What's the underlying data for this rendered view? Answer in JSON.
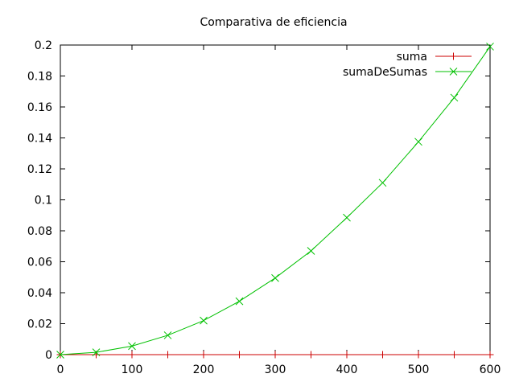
{
  "chart_data": {
    "type": "line",
    "title": "Comparativa de eficiencia",
    "xlabel": "",
    "ylabel": "",
    "xlim": [
      0,
      600
    ],
    "ylim": [
      0,
      0.2
    ],
    "x_ticks": [
      0,
      100,
      200,
      300,
      400,
      500,
      600
    ],
    "y_ticks": [
      0,
      0.02,
      0.04,
      0.06,
      0.08,
      0.1,
      0.12,
      0.14,
      0.16,
      0.18,
      0.2
    ],
    "x_tick_labels": [
      "0",
      "100",
      "200",
      "300",
      "400",
      "500",
      "600"
    ],
    "y_tick_labels": [
      "0",
      "0.02",
      "0.04",
      "0.06",
      "0.08",
      "0.1",
      "0.12",
      "0.14",
      "0.16",
      "0.18",
      "0.2"
    ],
    "grid": false,
    "legend_position": "top-right",
    "x": [
      0,
      50,
      100,
      150,
      200,
      250,
      300,
      350,
      400,
      450,
      500,
      550,
      600
    ],
    "series": [
      {
        "name": "suma",
        "color": "#cc0000",
        "marker": "plus",
        "values": [
          0,
          0,
          0,
          0,
          0,
          0,
          0,
          0,
          0,
          0,
          0,
          0,
          0
        ]
      },
      {
        "name": "sumaDeSumas",
        "color": "#00c000",
        "marker": "cross",
        "values": [
          0,
          0.0015,
          0.0055,
          0.0125,
          0.022,
          0.0345,
          0.0495,
          0.067,
          0.0885,
          0.111,
          0.1375,
          0.166,
          0.199
        ]
      }
    ]
  }
}
